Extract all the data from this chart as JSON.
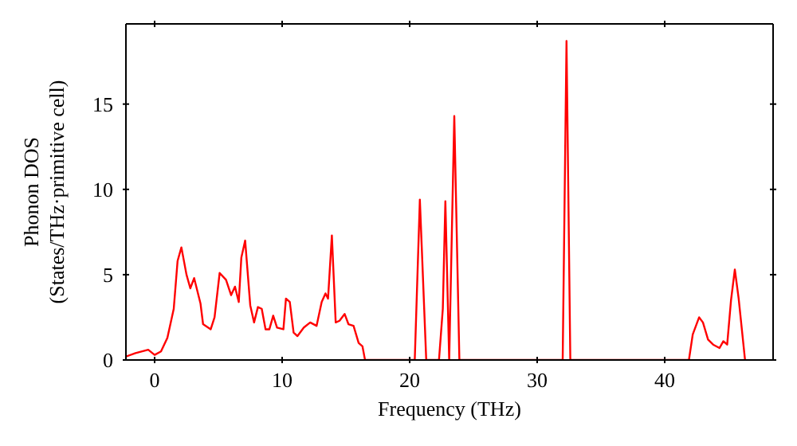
{
  "chart_data": {
    "type": "line",
    "xlabel": "Frequency (THz)",
    "ylabel": "Phonon DOS\n(States/THz·primitive cell)",
    "x": [
      -2.25,
      -1.5,
      -0.5,
      0,
      0.5,
      1,
      1.5,
      1.8,
      2.1,
      2.5,
      2.8,
      3.1,
      3.6,
      3.8,
      4.4,
      4.7,
      5.1,
      5.6,
      6,
      6.3,
      6.6,
      6.8,
      7.1,
      7.5,
      7.8,
      8.1,
      8.4,
      8.7,
      9,
      9.3,
      9.6,
      10.1,
      10.3,
      10.6,
      10.9,
      11.2,
      11.7,
      12.2,
      12.7,
      13.1,
      13.4,
      13.6,
      13.9,
      14.2,
      14.5,
      14.9,
      15.2,
      15.6,
      16,
      16.3,
      16.5,
      20.4,
      20.8,
      21.3,
      22.3,
      22.6,
      22.8,
      23.1,
      23.5,
      23.9,
      32,
      32.3,
      32.6,
      41.9,
      42.2,
      42.7,
      43,
      43.4,
      43.8,
      44.3,
      44.6,
      44.9,
      45.2,
      45.5,
      45.8,
      46.3
    ],
    "series": [
      {
        "color": "#ff0000",
        "values": [
          0.2,
          0.4,
          0.6,
          0.3,
          0.5,
          1.3,
          3,
          5.8,
          6.6,
          5,
          4.2,
          4.8,
          3.3,
          2.1,
          1.8,
          2.5,
          5.1,
          4.7,
          3.8,
          4.3,
          3.4,
          6,
          7,
          3.2,
          2.2,
          3.1,
          3,
          1.8,
          1.8,
          2.6,
          1.9,
          1.8,
          3.6,
          3.4,
          1.6,
          1.4,
          1.9,
          2.2,
          2,
          3.4,
          3.9,
          3.6,
          7.3,
          2.2,
          2.3,
          2.7,
          2.1,
          2,
          1,
          0.8,
          0,
          0,
          9.4,
          0,
          0,
          3,
          9.3,
          0,
          14.3,
          0,
          0,
          18.7,
          0,
          0,
          1.5,
          2.5,
          2.2,
          1.2,
          0.9,
          0.7,
          1.1,
          0.9,
          3.5,
          5.3,
          3.6,
          0
        ]
      }
    ],
    "xlim": [
      -2.25,
      48.5
    ],
    "ylim": [
      0,
      19.7
    ],
    "xticks": [
      0,
      10,
      20,
      30,
      40
    ],
    "yticks": [
      0,
      5,
      10,
      15
    ],
    "grid": false,
    "marker": "none"
  }
}
